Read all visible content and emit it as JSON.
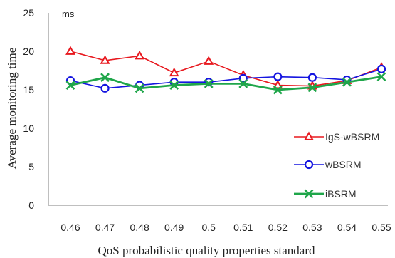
{
  "chart_data": {
    "type": "line",
    "title": "",
    "xlabel": "QoS probabilistic quality properties standard",
    "ylabel": "Average monitoring time",
    "yunit": "ms",
    "ylim": [
      0,
      25
    ],
    "yticks": [
      0,
      5,
      10,
      15,
      20,
      25
    ],
    "categories": [
      "0.46",
      "0.47",
      "0.48",
      "0.49",
      "0.5",
      "0.51",
      "0.52",
      "0.53",
      "0.54",
      "0.55"
    ],
    "grid": false,
    "legend_position": "right",
    "series": [
      {
        "name": "IgS-wBSRM",
        "color": "#e8191f",
        "marker": "triangle",
        "values": [
          20.0,
          18.8,
          19.4,
          17.2,
          18.7,
          16.9,
          15.6,
          15.5,
          16.2,
          17.9
        ]
      },
      {
        "name": "wBSRM",
        "color": "#1515e0",
        "marker": "circle",
        "values": [
          16.2,
          15.2,
          15.6,
          16.0,
          16.0,
          16.5,
          16.7,
          16.6,
          16.3,
          17.7
        ]
      },
      {
        "name": "iBSRM",
        "color": "#1fa64a",
        "marker": "x",
        "values": [
          15.6,
          16.6,
          15.2,
          15.6,
          15.8,
          15.8,
          15.0,
          15.3,
          16.0,
          16.7
        ]
      }
    ]
  }
}
